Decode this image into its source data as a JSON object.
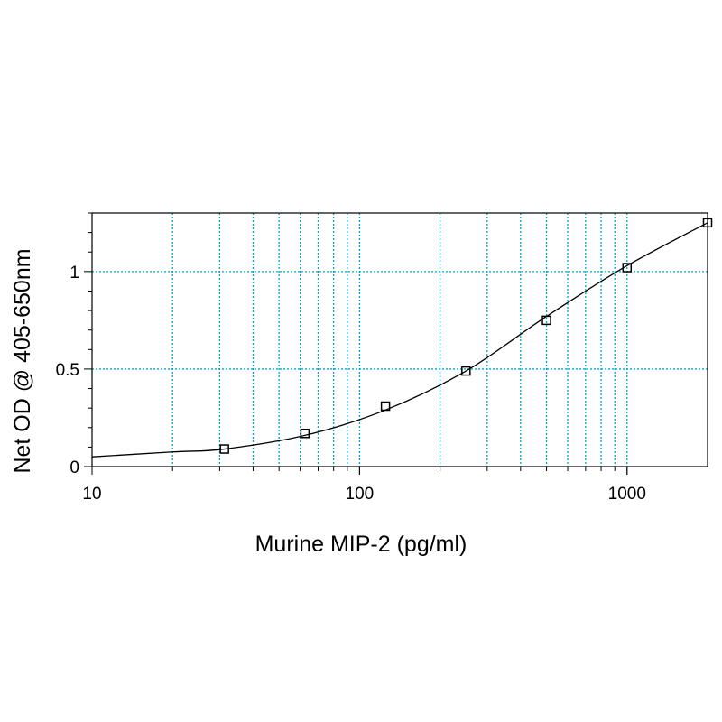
{
  "chart_data": {
    "type": "scatter",
    "title": "",
    "xlabel": "Murine MIP-2 (pg/ml)",
    "ylabel": "Net OD @ 405-650nm",
    "x_scale": "log",
    "xlim": [
      10,
      2000
    ],
    "ylim": [
      0,
      1.3
    ],
    "x_ticks": [
      10,
      100,
      1000
    ],
    "x_tick_labels": [
      "10",
      "100",
      "1000"
    ],
    "y_ticks": [
      0,
      0.5,
      1
    ],
    "y_tick_labels": [
      "0",
      "0.5",
      "1"
    ],
    "grid": true,
    "grid_color": "#00a6c8",
    "series": [
      {
        "marker": "square-open",
        "x": [
          31.25,
          62.5,
          125,
          250,
          500,
          1000,
          2000
        ],
        "y": [
          0.09,
          0.17,
          0.31,
          0.49,
          0.75,
          1.02,
          1.25
        ]
      }
    ],
    "fit_curve": {
      "type": "4-parameter logistic",
      "x": [
        10,
        20,
        31.25,
        62.5,
        125,
        250,
        500,
        1000,
        2000
      ],
      "y": [
        0.05,
        0.075,
        0.09,
        0.16,
        0.29,
        0.49,
        0.77,
        1.03,
        1.25
      ]
    }
  }
}
